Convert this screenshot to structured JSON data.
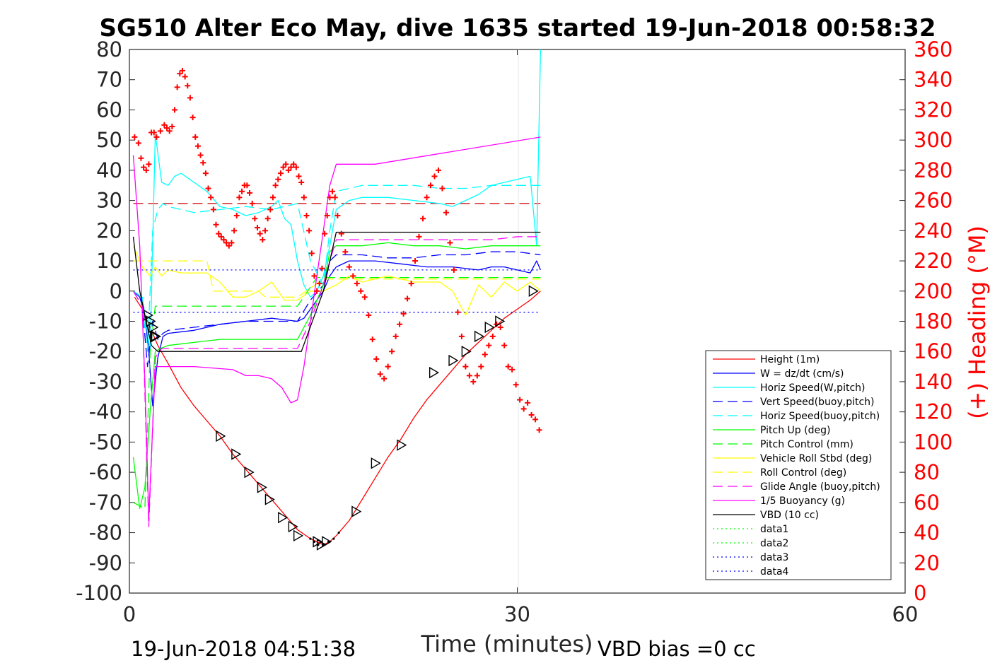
{
  "chart_data": {
    "type": "line",
    "title": "SG510 Alter Eco May, dive 1635 started 19-Jun-2018 00:58:32",
    "xlabel": "Time (minutes)",
    "ylabel": "",
    "y2label": "(+) Heading (°M)",
    "xlim": [
      0,
      60
    ],
    "ylim": [
      -100,
      80
    ],
    "y2lim": [
      0,
      360
    ],
    "x_ticks": [
      "0",
      "30",
      "60"
    ],
    "y_ticks": [
      "80",
      "70",
      "60",
      "50",
      "40",
      "30",
      "20",
      "10",
      "0",
      "-10",
      "-20",
      "-30",
      "-40",
      "-50",
      "-60",
      "-70",
      "-80",
      "-90",
      "-100"
    ],
    "y2_ticks": [
      "360",
      "340",
      "320",
      "300",
      "280",
      "260",
      "240",
      "220",
      "200",
      "180",
      "160",
      "140",
      "120",
      "100",
      "80",
      "60",
      "40",
      "20",
      "0"
    ],
    "grid": "x only at 30",
    "legend_position": "bottom-right",
    "footer_left": "19-Jun-2018 04:51:38",
    "footer_right": "VBD bias =0 cc",
    "colors": {
      "red": "#ff0000",
      "blue": "#0000ff",
      "cyan": "#00ffff",
      "green": "#00ff00",
      "yellow": "#ffff00",
      "magenta": "#ff00ff",
      "black": "#000000",
      "darkred": "#cc0000"
    },
    "series": [
      {
        "name": "Height (1m)",
        "color": "#ff0000",
        "style": "solid",
        "x": [
          0.4,
          1.0,
          1.6,
          2.2,
          3,
          4,
          5,
          6,
          7,
          8,
          9,
          10,
          11,
          12,
          13,
          14,
          15,
          15.5,
          16,
          17,
          18,
          19,
          20,
          21,
          22,
          23,
          24,
          25,
          26,
          27,
          28,
          29,
          30,
          31,
          31.8
        ],
        "y": [
          -2,
          -6,
          -12,
          -18,
          -24,
          -32,
          -38,
          -43,
          -48,
          -54,
          -59,
          -64,
          -69,
          -74,
          -79,
          -82,
          -84,
          -83,
          -81,
          -76,
          -69,
          -62,
          -55,
          -49,
          -42,
          -36,
          -31,
          -26,
          -21,
          -17,
          -13,
          -9,
          -6,
          -3,
          0
        ]
      },
      {
        "name": "W = dz/dt (cm/s)",
        "color": "#0000ff",
        "style": "solid",
        "x": [
          0.3,
          0.8,
          1.2,
          1.5,
          1.8,
          2.2,
          2.6,
          3,
          5,
          7,
          9,
          11,
          12,
          13,
          13.5,
          14,
          14.5,
          15,
          15.5,
          16,
          17,
          19,
          21,
          23,
          25,
          27,
          28,
          29,
          30,
          31,
          31.5,
          31.8
        ],
        "y": [
          0,
          -2,
          -8,
          -20,
          -38,
          -22,
          -15,
          -14,
          -13,
          -11,
          -10,
          -9,
          -9.5,
          -10,
          -9,
          -6,
          -3,
          0,
          5,
          8,
          10,
          10,
          9,
          8,
          8,
          7,
          8,
          8,
          7,
          6,
          10,
          7
        ]
      },
      {
        "name": "Horiz Speed(W,pitch)",
        "color": "#00ffff",
        "style": "solid",
        "x": [
          0.3,
          1.0,
          1.6,
          2.0,
          2.5,
          3,
          3.5,
          4,
          5,
          6,
          7,
          8,
          9,
          10,
          11,
          11.5,
          12,
          12.5,
          13,
          13.5,
          14,
          14.5,
          15,
          15.5,
          16,
          17,
          18,
          20,
          22,
          24,
          25,
          26,
          27,
          28,
          29,
          30,
          31,
          31.5,
          31.8
        ],
        "y": [
          0,
          -2,
          -20,
          52,
          36,
          35,
          38,
          39,
          36,
          33,
          28,
          27,
          25,
          26,
          28,
          30,
          24,
          22,
          10,
          2,
          -2,
          0,
          5,
          15,
          27,
          30,
          31,
          31,
          30,
          29,
          28,
          30,
          32,
          35,
          36,
          37,
          38,
          15,
          80
        ]
      },
      {
        "name": "Vert Speed(buoy,pitch)",
        "color": "#0000ff",
        "style": "dashed",
        "x": [
          0.3,
          1.0,
          1.4,
          1.8,
          2.2,
          2.6,
          3,
          5,
          7,
          9,
          11,
          13,
          14,
          15,
          15.5,
          16,
          18,
          20,
          22,
          24,
          26,
          28,
          30,
          31.8
        ],
        "y": [
          0,
          -5,
          -25,
          -10,
          -16,
          -14,
          -13,
          -12,
          -11,
          -10,
          -10,
          -10,
          -3,
          2,
          10,
          12,
          12,
          11,
          11,
          12,
          12,
          13,
          13,
          12
        ]
      },
      {
        "name": "Horiz Speed(buoy,pitch)",
        "color": "#00ffff",
        "style": "dashed",
        "x": [
          0.3,
          1.0,
          1.4,
          1.8,
          2.2,
          2.6,
          3,
          5,
          7,
          9,
          11,
          13,
          14,
          15,
          15.5,
          16,
          18,
          20,
          22,
          24,
          26,
          28,
          30,
          31.8
        ],
        "y": [
          0,
          -5,
          -20,
          20,
          27,
          29,
          28,
          26,
          27,
          28,
          27,
          29,
          10,
          2,
          20,
          33,
          35,
          35,
          35,
          34,
          34,
          35,
          35,
          35
        ]
      },
      {
        "name": "Pitch Up (deg)",
        "color": "#00ff00",
        "style": "solid",
        "x": [
          0.3,
          0.8,
          1.2,
          1.6,
          2.0,
          2.4,
          3,
          5,
          7,
          9,
          11,
          13,
          14,
          15,
          15.5,
          16,
          18,
          20,
          22,
          24,
          26,
          28,
          30,
          31.8
        ],
        "y": [
          -55,
          -72,
          -65,
          -40,
          -20,
          -19,
          -18,
          -17,
          -16,
          -16,
          -16,
          -16,
          -8,
          2,
          13,
          15,
          15,
          16,
          15,
          15,
          14,
          15,
          15,
          15
        ]
      },
      {
        "name": "Pitch Control (mm)",
        "color": "#00ff00",
        "style": "dashed",
        "x": [
          0.3,
          1.2,
          1.6,
          2.0,
          3,
          13,
          14.5,
          31.8
        ],
        "y": [
          -70,
          -72,
          -20,
          -5,
          -5,
          -5,
          4.5,
          4.5
        ]
      },
      {
        "name": "Vehicle Roll Stbd (deg)",
        "color": "#ffff00",
        "style": "solid",
        "x": [
          0.3,
          1.0,
          1.6,
          2.0,
          2.5,
          3,
          4,
          5,
          6,
          7,
          8,
          9,
          10,
          11,
          12,
          13,
          14,
          15,
          16,
          17,
          18,
          20,
          22,
          24,
          25,
          26,
          27,
          28,
          29,
          30,
          31,
          31.8
        ],
        "y": [
          15,
          8,
          5,
          8,
          5,
          7,
          6,
          6,
          6,
          3,
          -2,
          -2,
          0,
          3,
          -3,
          -3,
          0,
          0,
          2,
          5,
          3,
          5,
          3,
          3,
          0,
          -8,
          2,
          -2,
          3,
          0,
          3,
          0
        ]
      },
      {
        "name": "Roll Control (deg)",
        "color": "#ffff00",
        "style": "dashed",
        "x": [
          0.3,
          1.6,
          2.0,
          6,
          6.5,
          10,
          10.5,
          13,
          15,
          31.8
        ],
        "y": [
          10,
          10,
          10,
          10,
          0,
          0,
          -2,
          -2,
          4,
          4
        ]
      },
      {
        "name": "Glide Angle (buoy,pitch)",
        "color": "#ff00ff",
        "style": "dashed",
        "x": [
          0.3,
          1.0,
          1.5,
          2.0,
          2.5,
          3,
          5,
          7,
          9,
          11,
          13,
          14,
          15,
          15.5,
          16,
          18,
          20,
          22,
          24,
          26,
          28,
          30,
          31.8
        ],
        "y": [
          0,
          -5,
          -78,
          -22,
          -19,
          -19,
          -19,
          -19,
          -19,
          -19,
          -19,
          -10,
          2,
          10,
          17,
          17,
          17,
          17,
          17,
          17,
          17,
          18,
          18
        ]
      },
      {
        "name": "1/5 Buoyancy (g)",
        "color": "#ff00ff",
        "style": "solid",
        "x": [
          0.3,
          0.8,
          1.2,
          1.5,
          2.0,
          2.5,
          3,
          5,
          8,
          9,
          10,
          11,
          11.8,
          12.5,
          13,
          13.5,
          14,
          14.5,
          15,
          15.5,
          16,
          16.5,
          19,
          31.8
        ],
        "y": [
          45,
          15,
          -30,
          -75,
          -25,
          -25,
          -25,
          -25,
          -26,
          -28,
          -28,
          -29,
          -32,
          -37,
          -36,
          -25,
          -10,
          5,
          20,
          35,
          42,
          42,
          42,
          51
        ]
      },
      {
        "name": "VBD (10 cc)",
        "color": "#000000",
        "style": "solid",
        "x": [
          0.3,
          0.8,
          1.3,
          1.7,
          2.2,
          13.3,
          15.0,
          15.5,
          16.0,
          31.8
        ],
        "y": [
          18,
          0,
          -10,
          -18,
          -20,
          -20,
          0,
          10,
          19.5,
          19.5
        ]
      },
      {
        "name": "data1",
        "color": "#00ff00",
        "style": "dotted",
        "x": [],
        "y": []
      },
      {
        "name": "data2",
        "color": "#00ff00",
        "style": "dotted",
        "x": [],
        "y": []
      },
      {
        "name": "data3",
        "color": "#0000ff",
        "style": "dotted",
        "x": [
          0.3,
          31.8
        ],
        "y": [
          7,
          7
        ]
      },
      {
        "name": "data4",
        "color": "#0000ff",
        "style": "dotted",
        "x": [
          0.3,
          31.8
        ],
        "y": [
          -7,
          -7
        ]
      }
    ],
    "reference_line": {
      "color": "#cc0000",
      "style": "dashed",
      "y": 29,
      "x": [
        0.3,
        31.8
      ]
    },
    "heading_points": {
      "color": "#ff0000",
      "marker": "+",
      "axis": "right",
      "x": [
        0.4,
        0.7,
        0.9,
        1.1,
        1.3,
        1.5,
        1.7,
        1.9,
        2.1,
        2.4,
        2.7,
        2.9,
        3.1,
        3.3,
        3.5,
        3.7,
        3.9,
        4.1,
        4.3,
        4.5,
        4.7,
        4.9,
        5.1,
        5.3,
        5.5,
        5.7,
        5.9,
        6.1,
        6.3,
        6.5,
        6.7,
        6.9,
        7.1,
        7.3,
        7.5,
        7.7,
        7.9,
        8.1,
        8.3,
        8.5,
        8.7,
        8.9,
        9.1,
        9.3,
        9.5,
        9.7,
        9.9,
        10.1,
        10.3,
        10.5,
        10.7,
        10.9,
        11.1,
        11.3,
        11.5,
        11.7,
        11.9,
        12.1,
        12.3,
        12.5,
        12.7,
        12.9,
        13.1,
        13.3,
        13.5,
        13.7,
        13.9,
        14.1,
        14.3,
        14.5,
        14.7,
        14.9,
        15.1,
        15.3,
        15.5,
        15.7,
        15.9,
        16.1,
        16.4,
        16.7,
        17.0,
        17.3,
        17.6,
        17.9,
        18.2,
        18.5,
        18.8,
        19.1,
        19.4,
        19.7,
        20.0,
        20.3,
        20.6,
        20.9,
        21.2,
        21.5,
        21.8,
        22.1,
        22.4,
        22.7,
        23.0,
        23.3,
        23.6,
        23.9,
        24.2,
        24.5,
        24.8,
        25.1,
        25.4,
        25.7,
        26.0,
        26.3,
        26.6,
        26.9,
        27.2,
        27.5,
        27.8,
        28.1,
        28.4,
        28.7,
        29.0,
        29.3,
        29.6,
        29.9,
        30.2,
        30.5,
        30.8,
        31.1,
        31.4,
        31.7
      ],
      "y": [
        302,
        298,
        288,
        282,
        280,
        284,
        305,
        305,
        302,
        306,
        310,
        308,
        306,
        309,
        320,
        335,
        344,
        346,
        342,
        336,
        328,
        315,
        302,
        296,
        290,
        285,
        278,
        268,
        262,
        254,
        244,
        238,
        236,
        234,
        232,
        230,
        232,
        240,
        250,
        262,
        266,
        270,
        270,
        265,
        258,
        248,
        242,
        238,
        234,
        240,
        248,
        254,
        262,
        270,
        274,
        278,
        282,
        284,
        280,
        282,
        284,
        282,
        276,
        272,
        262,
        250,
        240,
        225,
        210,
        200,
        205,
        215,
        238,
        250,
        262,
        266,
        262,
        250,
        238,
        226,
        216,
        210,
        205,
        200,
        196,
        184,
        168,
        155,
        145,
        142,
        150,
        160,
        170,
        178,
        185,
        195,
        205,
        220,
        236,
        248,
        262,
        270,
        276,
        280,
        268,
        252,
        232,
        214,
        186,
        170,
        150,
        144,
        140,
        144,
        150,
        158,
        164,
        170,
        178,
        176,
        164,
        150,
        148,
        138,
        128,
        122,
        126,
        118,
        115,
        108
      ]
    },
    "triangle_markers": {
      "color": "#000000",
      "x": [
        1.4,
        1.6,
        1.8,
        1.9,
        2.0,
        7.0,
        8.2,
        9.2,
        10.2,
        10.8,
        11.8,
        12.6,
        13.0,
        14.5,
        14.8,
        15.2,
        17.5,
        19.0,
        21.0,
        23.5,
        25.0,
        26.0,
        27.0,
        27.8,
        28.6,
        31.2
      ],
      "y": [
        -8,
        -10,
        -12,
        -15,
        -15,
        -48,
        -54,
        -60,
        -65,
        -69,
        -75,
        -78,
        -81,
        -83,
        -84,
        -83,
        -73,
        -57,
        -51,
        -27,
        -23,
        -20,
        -15,
        -12,
        -10,
        0
      ],
      "labels": []
    }
  }
}
